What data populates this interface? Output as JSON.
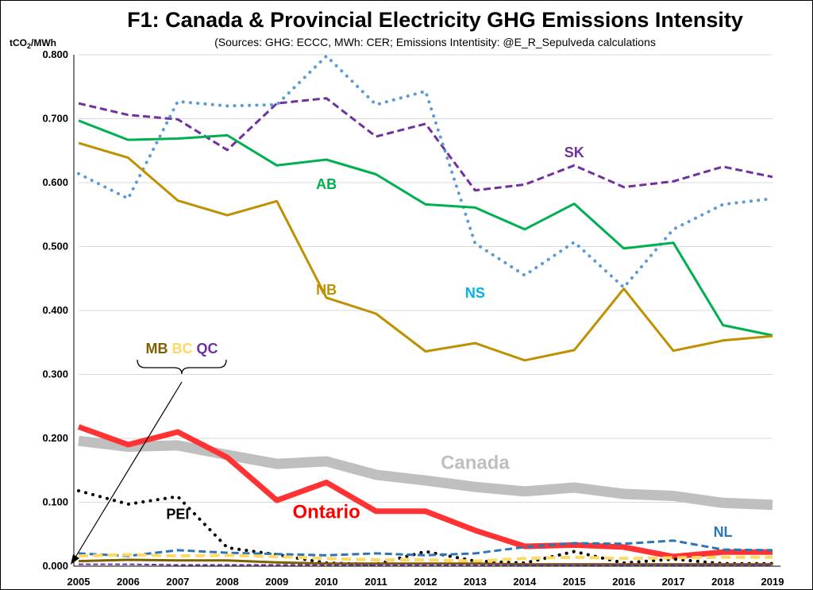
{
  "chart_data": {
    "type": "line",
    "title": "F1: Canada & Provincial Electricity GHG Emissions Intensity",
    "subtitle": "(Sources: GHG: ECCC, MWh: CER; Emissions Intentisity: @E_R_Sepulveda calculations",
    "ylabel_prefix": "tCO",
    "ylabel_sub": "2",
    "ylabel_suffix": "/MWh",
    "ylim": [
      0,
      0.8
    ],
    "yticks": [
      "0.000",
      "0.100",
      "0.200",
      "0.300",
      "0.400",
      "0.500",
      "0.600",
      "0.700",
      "0.800"
    ],
    "grid": true,
    "x": [
      "2005",
      "2006",
      "2007",
      "2008",
      "2009",
      "2010",
      "2011",
      "2012",
      "2013",
      "2014",
      "2015",
      "2016",
      "2017",
      "2018",
      "2019"
    ],
    "series": [
      {
        "name": "SK",
        "color": "#7030A0",
        "dash": "dashed",
        "width": 3,
        "values": [
          0.724,
          0.706,
          0.699,
          0.651,
          0.724,
          0.732,
          0.672,
          0.692,
          0.588,
          0.597,
          0.627,
          0.593,
          0.602,
          0.625,
          0.609
        ]
      },
      {
        "name": "NS",
        "color": "#5B9BD5",
        "dash": "dotted",
        "width": 4,
        "values": [
          0.614,
          0.575,
          0.727,
          0.72,
          0.722,
          0.798,
          0.722,
          0.743,
          0.505,
          0.455,
          0.507,
          0.436,
          0.527,
          0.566,
          0.575
        ]
      },
      {
        "name": "AB",
        "color": "#00B050",
        "dash": "solid",
        "width": 3,
        "values": [
          0.697,
          0.667,
          0.669,
          0.674,
          0.627,
          0.636,
          0.613,
          0.566,
          0.561,
          0.527,
          0.567,
          0.497,
          0.506,
          0.377,
          0.361
        ]
      },
      {
        "name": "NB",
        "color": "#BF9000",
        "dash": "solid",
        "width": 3,
        "values": [
          0.662,
          0.639,
          0.572,
          0.549,
          0.571,
          0.42,
          0.395,
          0.336,
          0.349,
          0.322,
          0.338,
          0.434,
          0.337,
          0.353,
          0.36
        ]
      },
      {
        "name": "Canada",
        "color": "#BFBFBF",
        "dash": "solid",
        "width": 13,
        "values": [
          0.196,
          0.187,
          0.189,
          0.174,
          0.16,
          0.164,
          0.143,
          0.134,
          0.124,
          0.117,
          0.123,
          0.113,
          0.11,
          0.099,
          0.096
        ]
      },
      {
        "name": "Ontario",
        "color": "#FF3333",
        "dash": "solid",
        "width": 7,
        "values": [
          0.218,
          0.19,
          0.21,
          0.17,
          0.103,
          0.131,
          0.086,
          0.086,
          0.056,
          0.031,
          0.033,
          0.03,
          0.015,
          0.022,
          0.022
        ]
      },
      {
        "name": "PEI",
        "color": "#000000",
        "dash": "dotted",
        "width": 4,
        "values": [
          0.118,
          0.097,
          0.109,
          0.029,
          0.018,
          0.005,
          0.003,
          0.023,
          0.008,
          0.005,
          0.023,
          0.005,
          0.011,
          0.004,
          0.004
        ]
      },
      {
        "name": "NL",
        "color": "#2E75B6",
        "dash": "dashed",
        "width": 3,
        "values": [
          0.02,
          0.016,
          0.025,
          0.021,
          0.019,
          0.017,
          0.02,
          0.017,
          0.02,
          0.03,
          0.036,
          0.035,
          0.04,
          0.026,
          0.025
        ]
      },
      {
        "name": "BC",
        "color": "#FFD966",
        "dash": "dashed",
        "width": 4,
        "values": [
          0.016,
          0.018,
          0.016,
          0.017,
          0.015,
          0.012,
          0.01,
          0.01,
          0.008,
          0.012,
          0.014,
          0.012,
          0.013,
          0.014,
          0.014
        ]
      },
      {
        "name": "MB",
        "color": "#7F6000",
        "dash": "solid",
        "width": 3,
        "values": [
          0.008,
          0.01,
          0.009,
          0.009,
          0.006,
          0.004,
          0.004,
          0.004,
          0.004,
          0.003,
          0.003,
          0.003,
          0.003,
          0.003,
          0.003
        ]
      },
      {
        "name": "QC",
        "color": "#7030A0",
        "dash": "dashed",
        "width": 2,
        "values": [
          0.003,
          0.003,
          0.002,
          0.002,
          0.002,
          0.002,
          0.002,
          0.002,
          0.002,
          0.002,
          0.002,
          0.002,
          0.002,
          0.002,
          0.002
        ]
      }
    ],
    "labels": [
      {
        "text": "SK",
        "color": "#7030A0",
        "x": "2015",
        "y": 0.64,
        "size": "normal"
      },
      {
        "text": "AB",
        "color": "#00B050",
        "x": "2010",
        "y": 0.59,
        "size": "normal"
      },
      {
        "text": "NS",
        "color": "#00B0F0",
        "x": "2013",
        "y": 0.42,
        "size": "normal"
      },
      {
        "text": "NB",
        "color": "#BF9000",
        "x": "2010",
        "y": 0.425,
        "size": "normal"
      },
      {
        "text": "Canada",
        "color": "#BFBFBF",
        "x": "2013",
        "y": 0.152,
        "size": "big"
      },
      {
        "text": "Ontario",
        "color": "#FF0000",
        "x": "2010",
        "y": 0.075,
        "size": "big"
      },
      {
        "text": "PEI",
        "color": "#000000",
        "x": "2007",
        "y": 0.074,
        "size": "normal"
      },
      {
        "text": "NL",
        "color": "#2E75B6",
        "x": "2018",
        "y": 0.046,
        "size": "normal"
      }
    ],
    "group_label": {
      "items": [
        {
          "text": "MB",
          "color": "#7F6000"
        },
        {
          "text": "BC",
          "color": "#FFD966"
        },
        {
          "text": "QC",
          "color": "#7030A0"
        }
      ]
    }
  }
}
